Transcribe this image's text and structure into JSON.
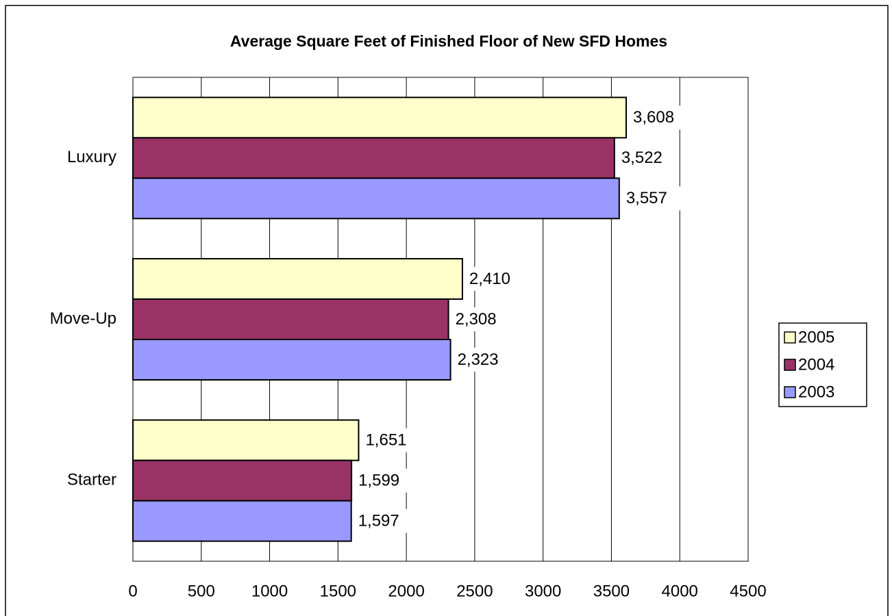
{
  "chart_data": {
    "type": "hbar",
    "title": "Average Square Feet of Finished Floor of New SFD Homes",
    "categories": [
      "Luxury",
      "Move-Up",
      "Starter"
    ],
    "series": [
      {
        "name": "2005",
        "color": "#FFFFCC",
        "values": [
          3608,
          2410,
          1651
        ],
        "value_labels": [
          "3,608",
          "2,410",
          "1,651"
        ]
      },
      {
        "name": "2004",
        "color": "#993366",
        "values": [
          3522,
          2308,
          1599
        ],
        "value_labels": [
          "3,522",
          "2,308",
          "1,599"
        ]
      },
      {
        "name": "2003",
        "color": "#9999FF",
        "values": [
          3557,
          2323,
          1597
        ],
        "value_labels": [
          "3,557",
          "2,323",
          "1,597"
        ]
      }
    ],
    "xlim": [
      0,
      4500
    ],
    "xticks": [
      0,
      500,
      1000,
      1500,
      2000,
      2500,
      3000,
      3500,
      4000,
      4500
    ],
    "grid": true,
    "legend": "right"
  }
}
